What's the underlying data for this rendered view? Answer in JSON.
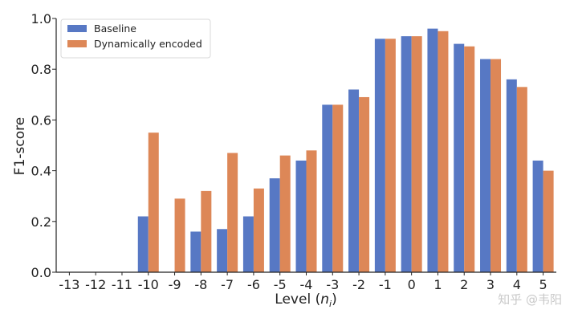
{
  "chart_data": {
    "type": "bar",
    "categories": [
      "-13",
      "-12",
      "-11",
      "-10",
      "-9",
      "-8",
      "-7",
      "-6",
      "-5",
      "-4",
      "-3",
      "-2",
      "-1",
      "0",
      "1",
      "2",
      "3",
      "4",
      "5"
    ],
    "series": [
      {
        "name": "Baseline",
        "color": "#5778c4",
        "values": [
          0,
          0,
          0,
          0.22,
          0,
          0.16,
          0.17,
          0.22,
          0.37,
          0.44,
          0.66,
          0.72,
          0.92,
          0.93,
          0.96,
          0.9,
          0.84,
          0.76,
          0.44
        ]
      },
      {
        "name": "Dynamically encoded",
        "color": "#dd8757",
        "values": [
          0,
          0,
          0,
          0.55,
          0.29,
          0.32,
          0.47,
          0.33,
          0.46,
          0.48,
          0.66,
          0.69,
          0.92,
          0.93,
          0.95,
          0.89,
          0.84,
          0.73,
          0.4
        ]
      }
    ],
    "xlabel_main": "Level (",
    "xlabel_var": "n",
    "xlabel_sub": "i",
    "xlabel_close": ")",
    "ylabel": "F1-score",
    "ylim": [
      0,
      1.0
    ],
    "yticks": [
      "0.0",
      "0.2",
      "0.4",
      "0.6",
      "0.8",
      "1.0"
    ],
    "legend_position": "top-left",
    "grid": false
  },
  "watermark": "知乎 @韦阳"
}
